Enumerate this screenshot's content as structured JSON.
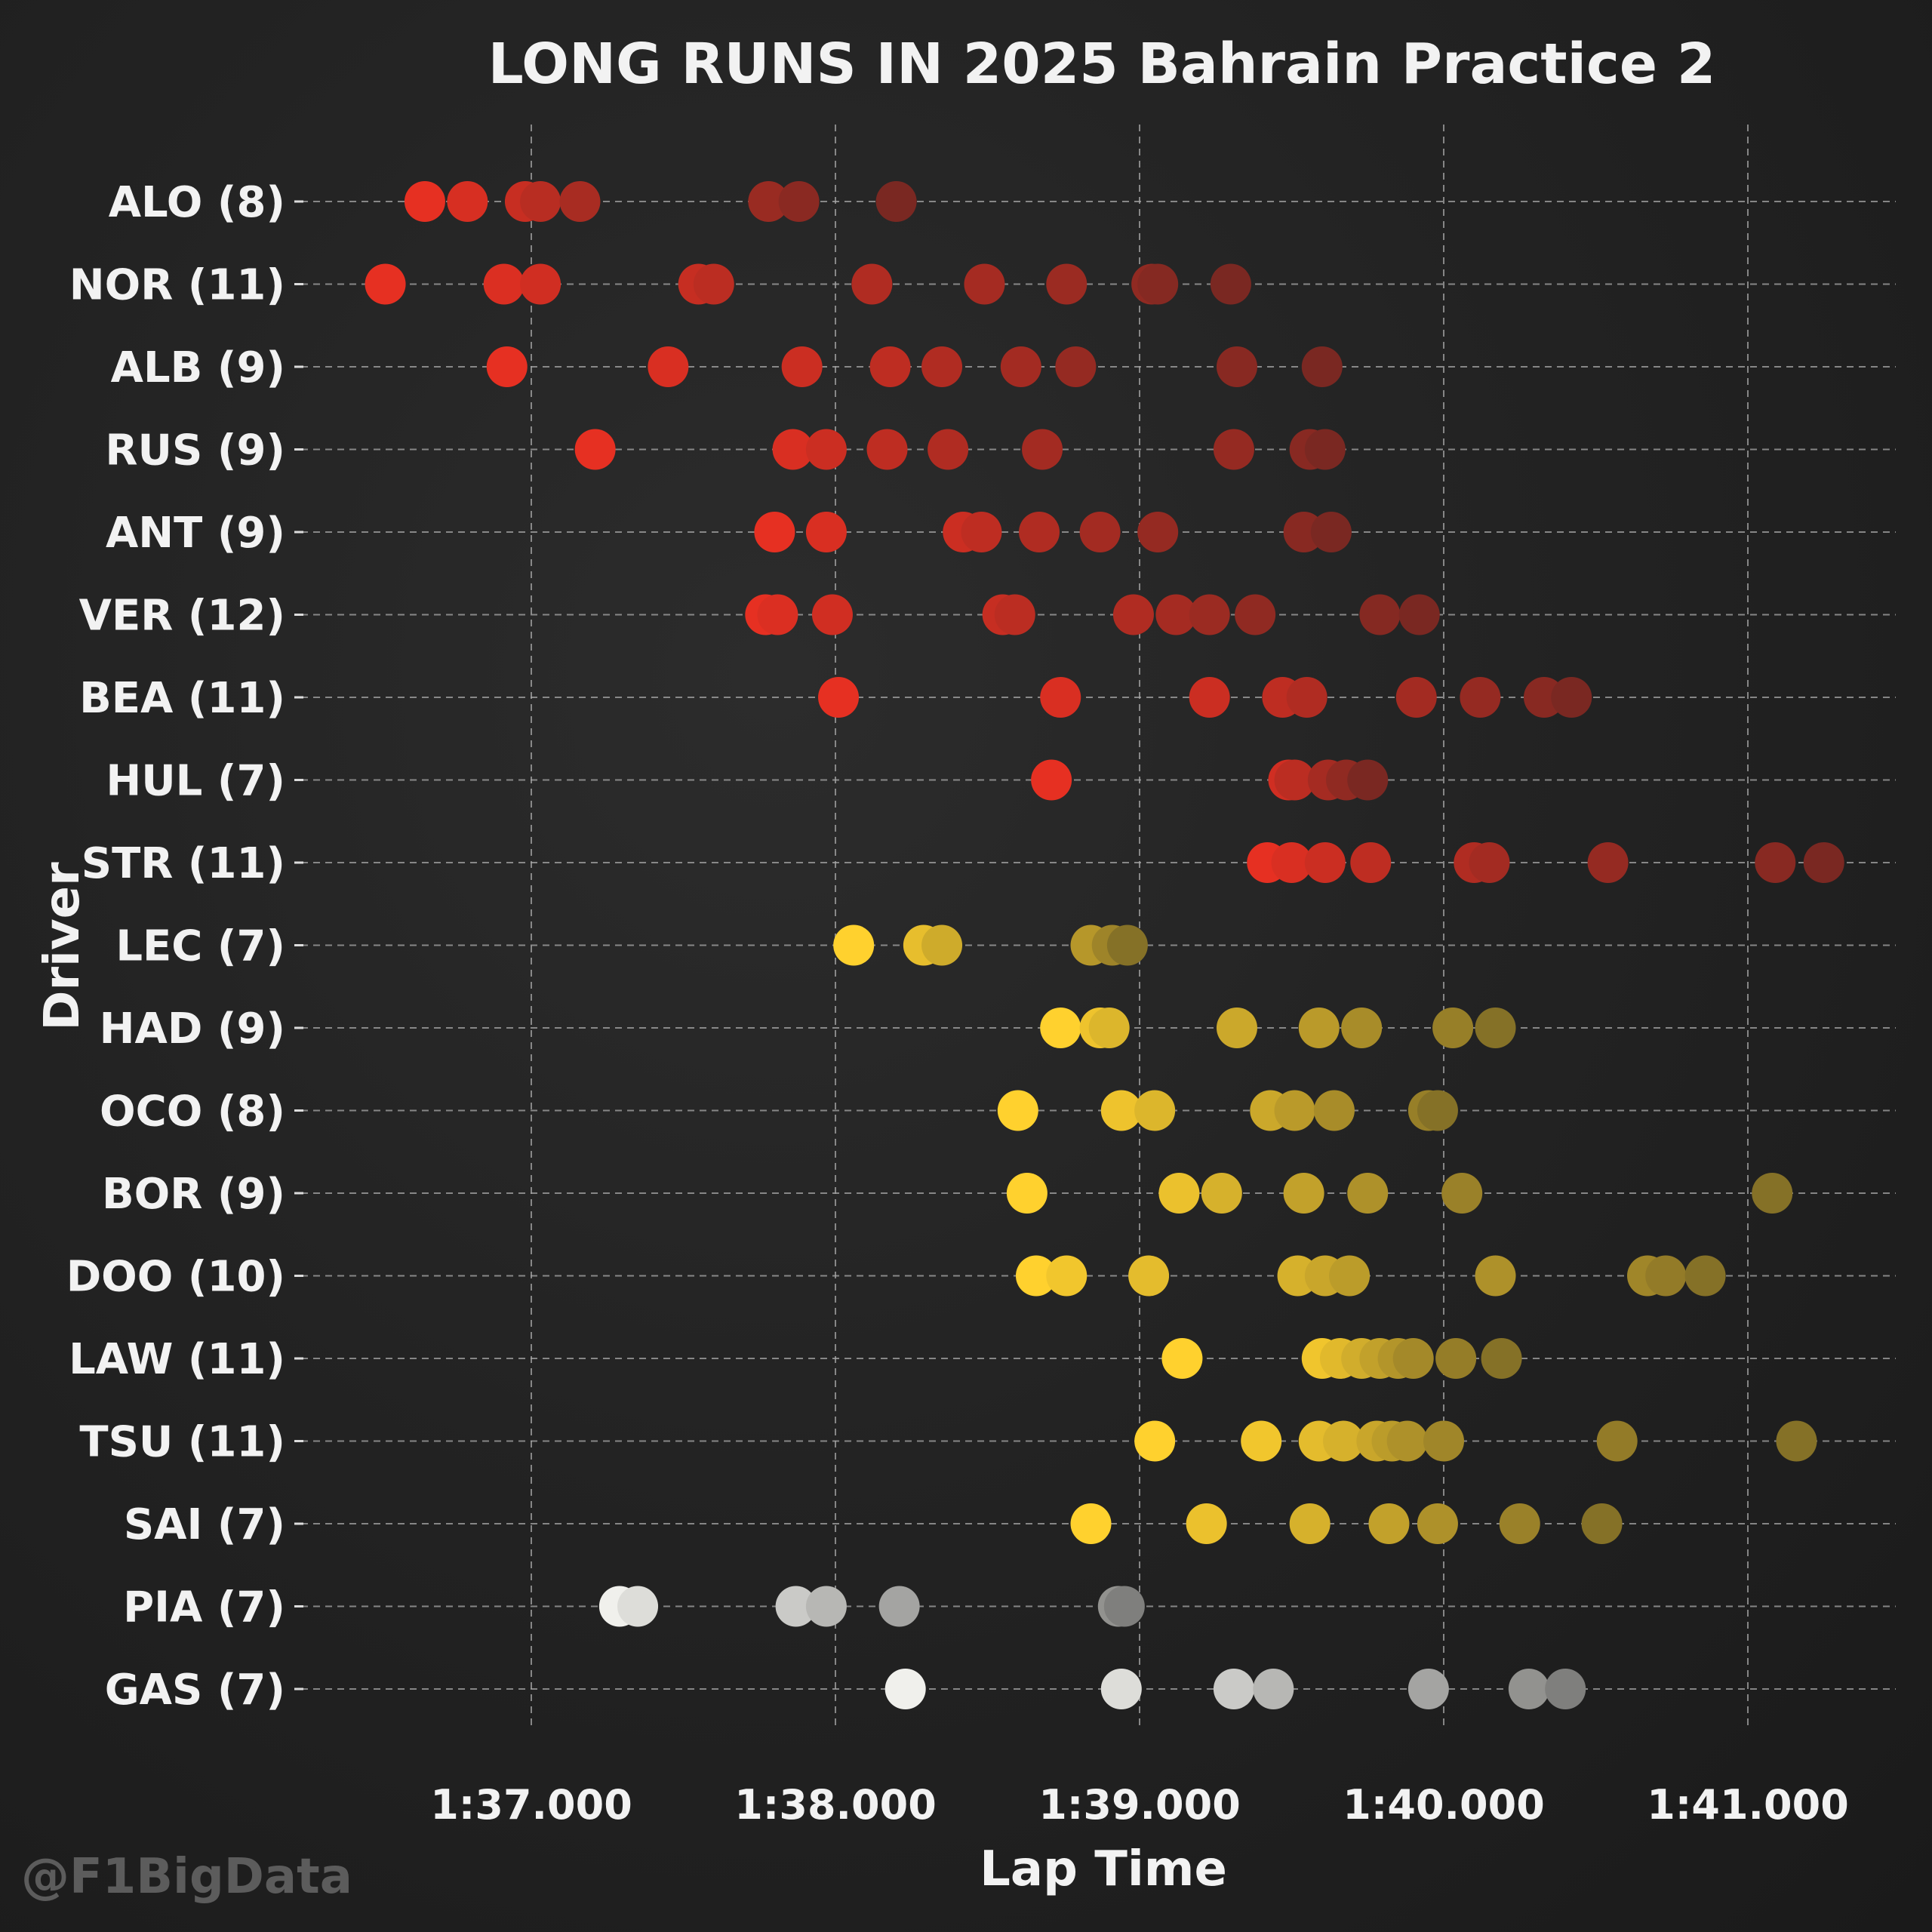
{
  "chart_data": {
    "type": "scatter",
    "title": "LONG RUNS IN 2025 Bahrain Practice 2",
    "xlabel": "Lap Time",
    "ylabel": "Driver",
    "watermark": "@F1BigData",
    "xlim": [
      96.55,
      101.5
    ],
    "xticks": [
      97,
      98,
      99,
      100,
      101
    ],
    "xtick_labels": [
      "1:37.000",
      "1:38.000",
      "1:39.000",
      "1:40.000",
      "1:41.000"
    ],
    "grid": true,
    "tyre_colors": {
      "SOFT": "#e63022",
      "MEDIUM": "#ffd12e",
      "HARD": "#f0f0ec"
    },
    "drivers": [
      {
        "label": "ALO (8)",
        "compound": "SOFT",
        "laps": [
          96.65,
          96.79,
          96.98,
          97.03,
          97.16,
          97.78,
          97.88,
          98.2
        ]
      },
      {
        "label": "NOR (11)",
        "compound": "SOFT",
        "laps": [
          96.52,
          96.91,
          97.03,
          97.55,
          97.6,
          98.12,
          98.49,
          98.76,
          99.04,
          99.06,
          99.3
        ]
      },
      {
        "label": "ALB (9)",
        "compound": "SOFT",
        "laps": [
          96.92,
          97.45,
          97.89,
          98.18,
          98.35,
          98.61,
          98.79,
          99.32,
          99.6
        ]
      },
      {
        "label": "RUS (9)",
        "compound": "SOFT",
        "laps": [
          97.21,
          97.86,
          97.97,
          98.17,
          98.37,
          98.68,
          99.31,
          99.56,
          99.61
        ]
      },
      {
        "label": "ANT (9)",
        "compound": "SOFT",
        "laps": [
          97.8,
          97.97,
          98.42,
          98.48,
          98.67,
          98.87,
          99.06,
          99.54,
          99.63
        ]
      },
      {
        "label": "VER (12)",
        "compound": "SOFT",
        "laps": [
          97.77,
          97.81,
          97.99,
          98.55,
          98.59,
          98.98,
          99.12,
          99.23,
          99.38,
          99.79,
          99.92
        ]
      },
      {
        "label": "BEA (11)",
        "compound": "SOFT",
        "laps": [
          98.01,
          98.74,
          99.23,
          99.47,
          99.55,
          99.91,
          100.12,
          100.33,
          100.42
        ]
      },
      {
        "label": "HUL (7)",
        "compound": "SOFT",
        "laps": [
          98.71,
          99.49,
          99.51,
          99.62,
          99.68,
          99.75
        ]
      },
      {
        "label": "STR (11)",
        "compound": "SOFT",
        "laps": [
          99.42,
          99.5,
          99.61,
          99.76,
          100.1,
          100.15,
          100.54,
          101.09,
          101.25
        ]
      },
      {
        "label": "LEC (7)",
        "compound": "MEDIUM",
        "laps": [
          98.06,
          98.29,
          98.35,
          98.84,
          98.91,
          98.96
        ]
      },
      {
        "label": "HAD (9)",
        "compound": "MEDIUM",
        "laps": [
          98.74,
          98.87,
          98.9,
          99.32,
          99.59,
          99.73,
          100.03,
          100.17
        ]
      },
      {
        "label": "OCO (8)",
        "compound": "MEDIUM",
        "laps": [
          98.6,
          98.94,
          99.05,
          99.43,
          99.51,
          99.64,
          99.95,
          99.98
        ]
      },
      {
        "label": "BOR (9)",
        "compound": "MEDIUM",
        "laps": [
          98.63,
          99.13,
          99.27,
          99.54,
          99.75,
          100.06,
          101.08
        ]
      },
      {
        "label": "DOO (10)",
        "compound": "MEDIUM",
        "laps": [
          98.66,
          98.76,
          99.03,
          99.52,
          99.61,
          99.69,
          100.17,
          100.67,
          100.73,
          100.86
        ]
      },
      {
        "label": "LAW (11)",
        "compound": "MEDIUM",
        "laps": [
          99.14,
          99.6,
          99.66,
          99.73,
          99.79,
          99.85,
          99.9,
          100.04,
          100.19
        ]
      },
      {
        "label": "TSU (11)",
        "compound": "MEDIUM",
        "laps": [
          99.05,
          99.4,
          99.59,
          99.67,
          99.78,
          99.83,
          99.88,
          100.0,
          100.57,
          101.16
        ]
      },
      {
        "label": "SAI (7)",
        "compound": "MEDIUM",
        "laps": [
          98.84,
          99.22,
          99.56,
          99.82,
          99.98,
          100.25,
          100.52
        ]
      },
      {
        "label": "PIA (7)",
        "compound": "HARD",
        "laps": [
          97.29,
          97.35,
          97.87,
          97.97,
          98.21,
          98.93,
          98.95
        ]
      },
      {
        "label": "GAS (7)",
        "compound": "HARD",
        "laps": [
          98.23,
          98.94,
          99.31,
          99.44,
          99.95,
          100.28,
          100.4
        ]
      }
    ]
  }
}
